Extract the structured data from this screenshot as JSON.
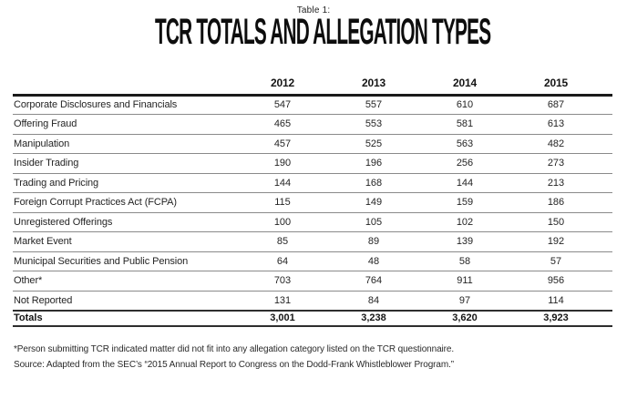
{
  "header": {
    "table_number": "Table 1:",
    "title": "TCR TOTALS AND ALLEGATION TYPES"
  },
  "table": {
    "year_columns": [
      "2012",
      "2013",
      "2014",
      "2015"
    ],
    "rows": [
      {
        "label": "Corporate Disclosures and Financials",
        "values": [
          "547",
          "557",
          "610",
          "687"
        ]
      },
      {
        "label": "Offering Fraud",
        "values": [
          "465",
          "553",
          "581",
          "613"
        ]
      },
      {
        "label": "Manipulation",
        "values": [
          "457",
          "525",
          "563",
          "482"
        ]
      },
      {
        "label": "Insider Trading",
        "values": [
          "190",
          "196",
          "256",
          "273"
        ]
      },
      {
        "label": "Trading and Pricing",
        "values": [
          "144",
          "168",
          "144",
          "213"
        ]
      },
      {
        "label": "Foreign Corrupt Practices Act (FCPA)",
        "values": [
          "115",
          "149",
          "159",
          "186"
        ]
      },
      {
        "label": "Unregistered Offerings",
        "values": [
          "100",
          "105",
          "102",
          "150"
        ]
      },
      {
        "label": "Market Event",
        "values": [
          "85",
          "89",
          "139",
          "192"
        ]
      },
      {
        "label": "Municipal Securities and Public Pension",
        "values": [
          "64",
          "48",
          "58",
          "57"
        ]
      },
      {
        "label": "Other*",
        "values": [
          "703",
          "764",
          "911",
          "956"
        ]
      },
      {
        "label": "Not Reported",
        "values": [
          "131",
          "84",
          "97",
          "114"
        ]
      }
    ],
    "totals": {
      "label": "Totals",
      "values": [
        "3,001",
        "3,238",
        "3,620",
        "3,923"
      ]
    }
  },
  "footnotes": {
    "asterisk_note": "*Person submitting TCR indicated matter did not fit into any allegation category listed on the TCR questionnaire.",
    "source_note": "Source: Adapted from the SEC’s “2015 Annual Report to Congress on the Dodd-Frank Whistleblower Program.”"
  },
  "colors": {
    "heavy_rule": "#1a1a1a",
    "light_rule": "#8a8a8a",
    "totals_rule": "#2e2e2e",
    "text": "#1f1f1f",
    "background": "#ffffff"
  }
}
